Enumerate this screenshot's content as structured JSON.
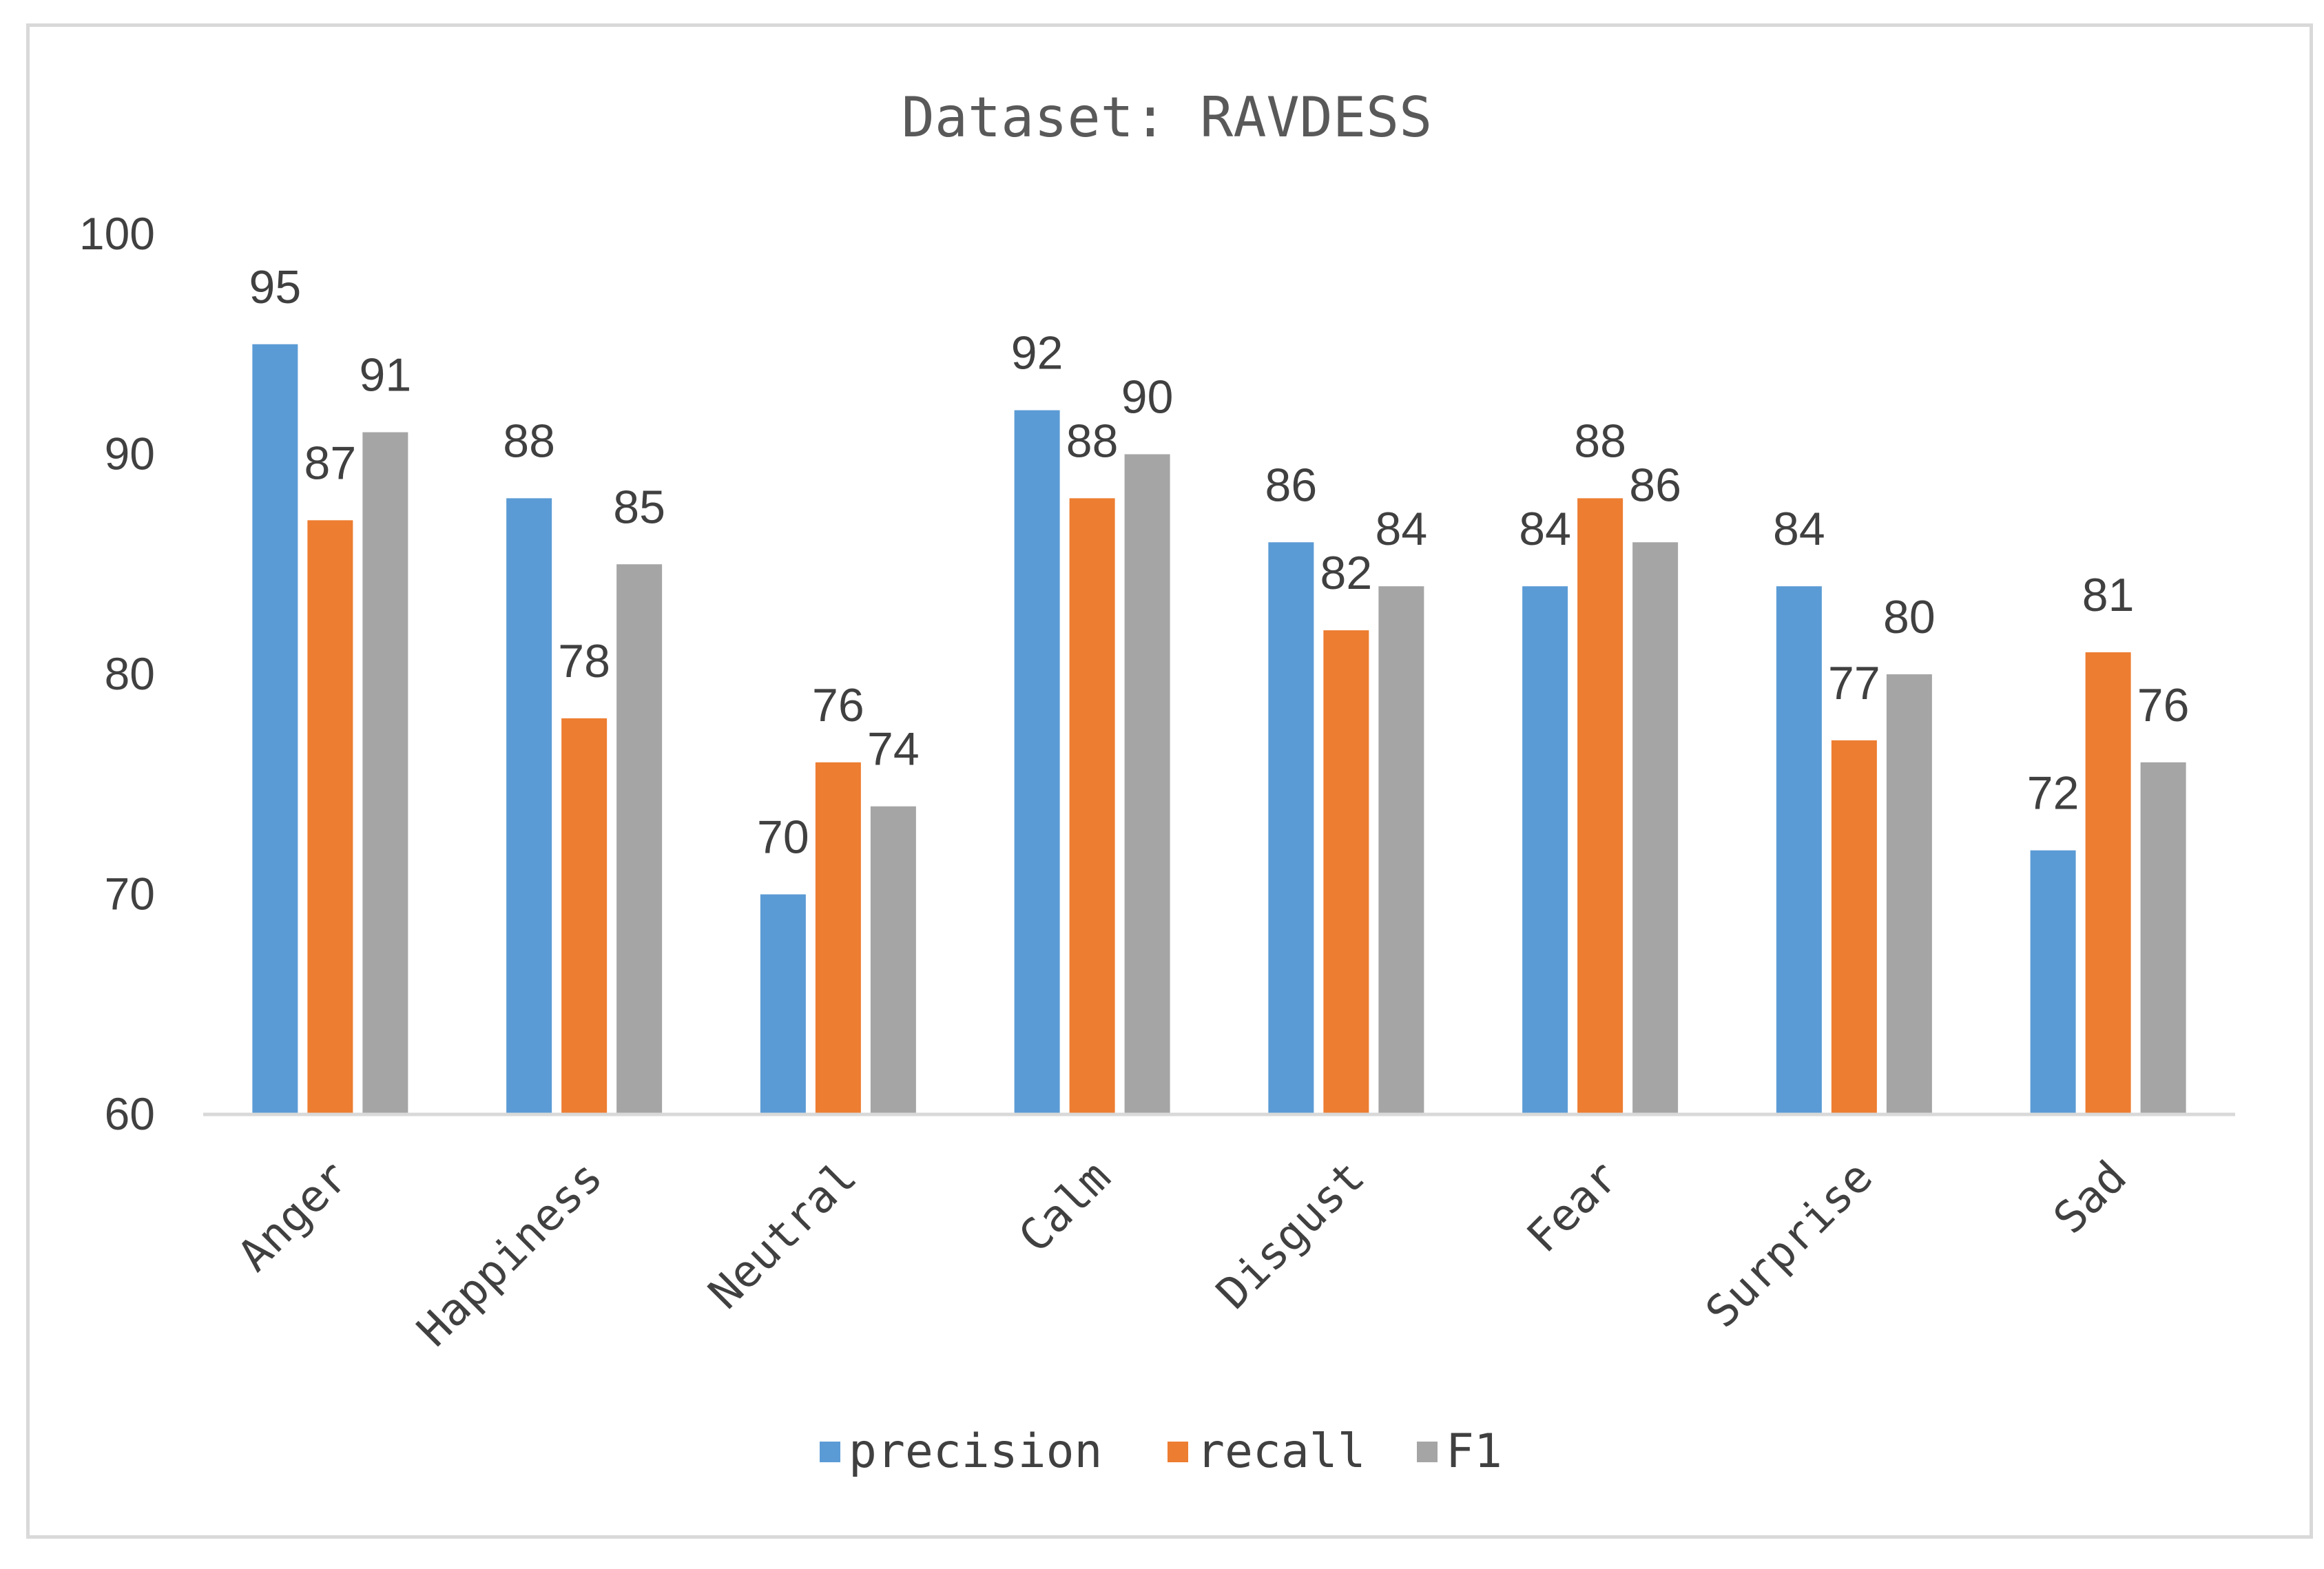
{
  "chart_data": {
    "type": "bar",
    "title": "Dataset: RAVDESS",
    "xlabel": "",
    "ylabel": "",
    "ylim": [
      60,
      100
    ],
    "yticks": [
      60,
      70,
      80,
      90,
      100
    ],
    "grid": false,
    "legend_position": "bottom",
    "categories": [
      "Anger",
      "Happiness",
      "Neutral",
      "Calm",
      "Disgust",
      "Fear",
      "Surprise",
      "Sad"
    ],
    "series": [
      {
        "name": "precision",
        "color": "#5b9bd5",
        "values": [
          95,
          88,
          70,
          92,
          86,
          84,
          84,
          72
        ]
      },
      {
        "name": "recall",
        "color": "#ed7d31",
        "values": [
          87,
          78,
          76,
          88,
          82,
          88,
          77,
          81
        ]
      },
      {
        "name": "F1",
        "color": "#a5a5a5",
        "values": [
          91,
          85,
          74,
          90,
          84,
          86,
          80,
          76
        ]
      }
    ]
  }
}
